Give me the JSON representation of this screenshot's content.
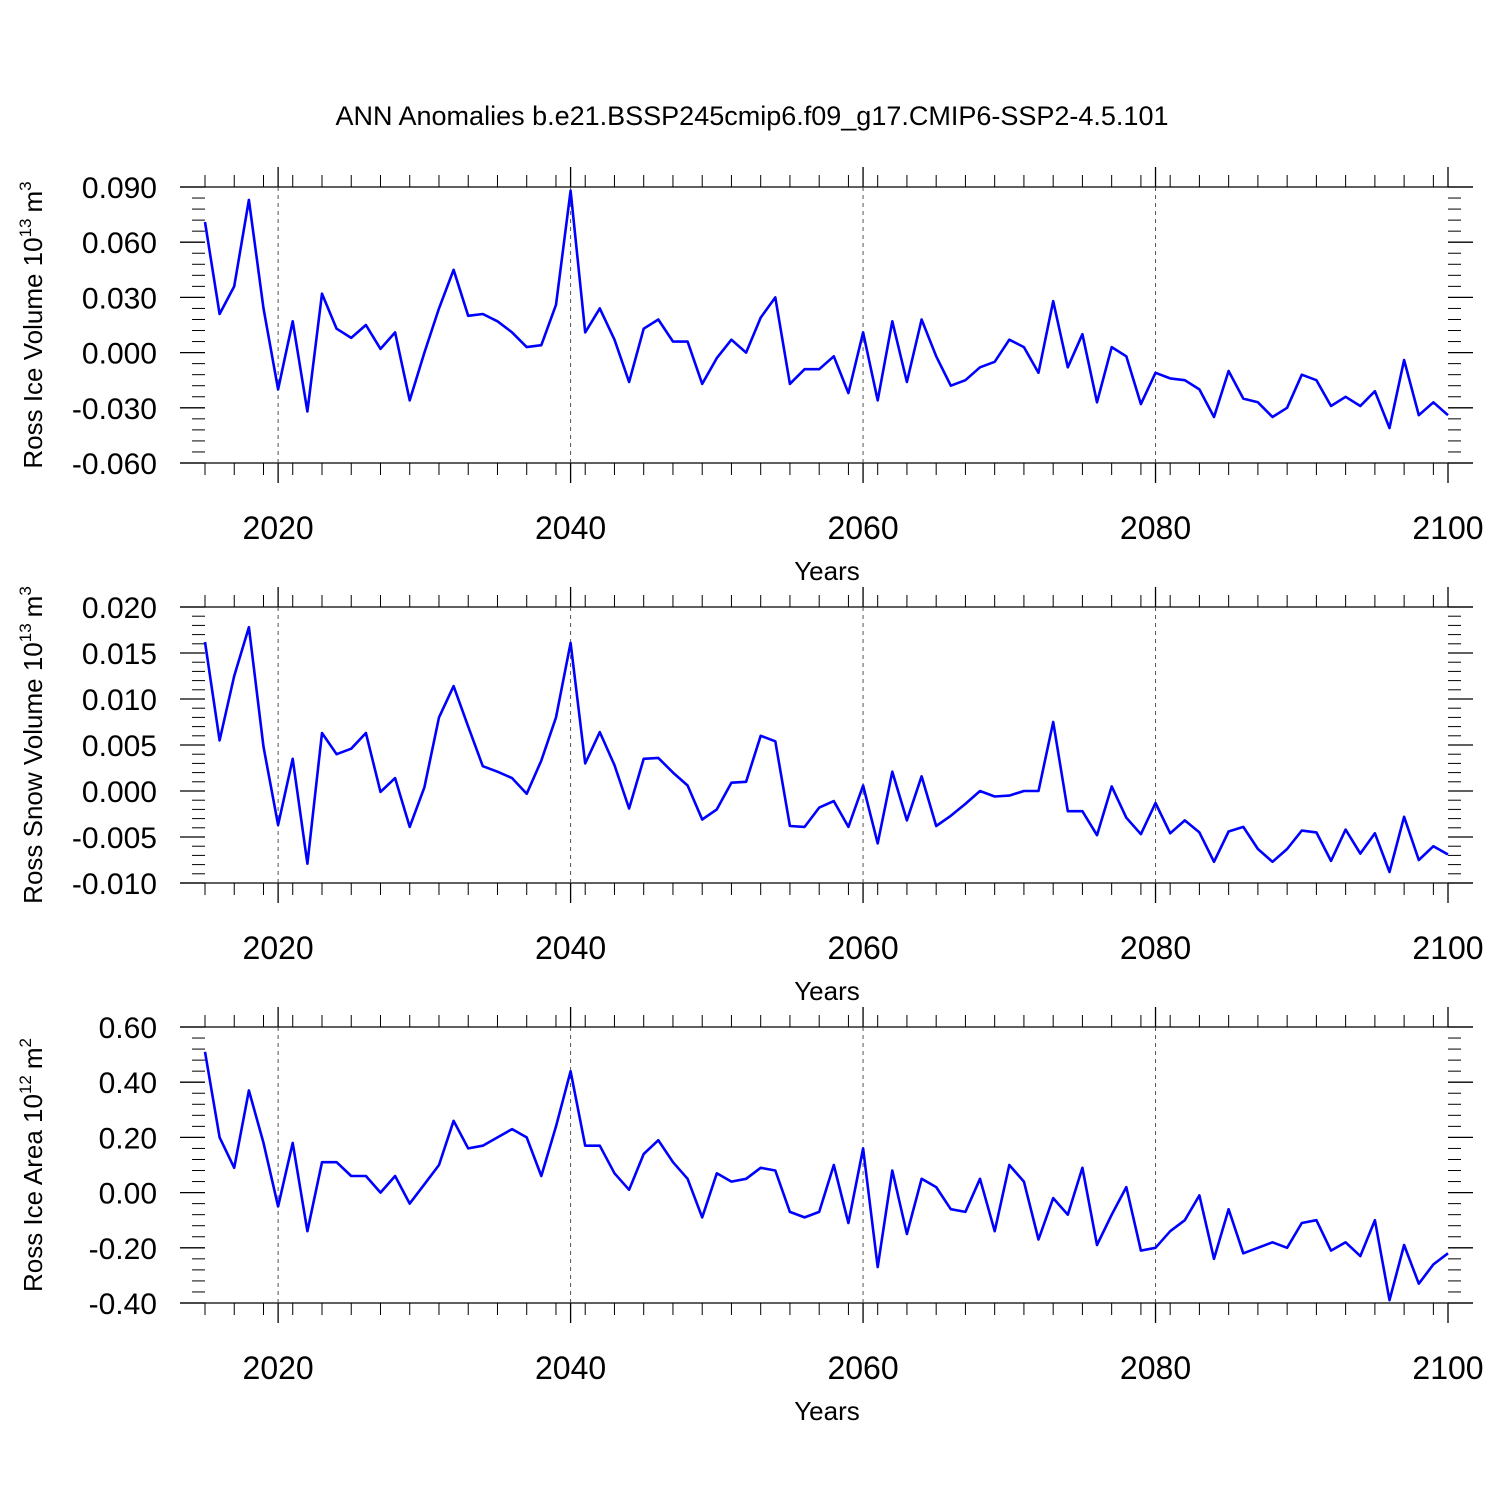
{
  "title": "ANN Anomalies b.e21.BSSP245cmip6.f09_g17.CMIP6-SSP2-4.5.101",
  "colors": {
    "line": "#0000ff",
    "axis": "#000000",
    "grid": "#555555"
  },
  "chart_data": [
    {
      "type": "line",
      "ylabel": "Ross Ice Volume 10",
      "ylabel_sup": "13",
      "ylabel_unit": "m",
      "ylabel_unit_sup": "3",
      "xlabel": "Years",
      "xlim": [
        2015,
        2100
      ],
      "ylim": [
        -0.06,
        0.09
      ],
      "x_ticks": [
        2020,
        2040,
        2060,
        2080,
        2100
      ],
      "x_tick_labels": [
        "2020",
        "2040",
        "2060",
        "2080",
        "2100"
      ],
      "y_ticks": [
        -0.06,
        -0.03,
        0.0,
        0.03,
        0.06,
        0.09
      ],
      "y_tick_labels": [
        "-0.060",
        "-0.030",
        "0.000",
        "0.030",
        "0.060",
        "0.090"
      ],
      "grid": "dashed vertical lines at major x ticks",
      "series": [
        {
          "x": [
            2015,
            2016,
            2017,
            2018,
            2019,
            2020,
            2021,
            2022,
            2023,
            2024,
            2025,
            2026,
            2027,
            2028,
            2029,
            2030,
            2031,
            2032,
            2033,
            2034,
            2035,
            2036,
            2037,
            2038,
            2039,
            2040,
            2041,
            2042,
            2043,
            2044,
            2045,
            2046,
            2047,
            2048,
            2049,
            2050,
            2051,
            2052,
            2053,
            2054,
            2055,
            2056,
            2057,
            2058,
            2059,
            2060,
            2061,
            2062,
            2063,
            2064,
            2065,
            2066,
            2067,
            2068,
            2069,
            2070,
            2071,
            2072,
            2073,
            2074,
            2075,
            2076,
            2077,
            2078,
            2079,
            2080,
            2081,
            2082,
            2083,
            2084,
            2085,
            2086,
            2087,
            2088,
            2089,
            2090,
            2091,
            2092,
            2093,
            2094,
            2095,
            2096,
            2097,
            2098,
            2099,
            2100
          ],
          "y": [
            0.071,
            0.021,
            0.036,
            0.083,
            0.024,
            -0.02,
            0.017,
            -0.032,
            0.032,
            0.013,
            0.008,
            0.015,
            0.002,
            0.011,
            -0.026,
            0.0,
            0.024,
            0.045,
            0.02,
            0.021,
            0.017,
            0.011,
            0.003,
            0.004,
            0.026,
            0.088,
            0.011,
            0.024,
            0.007,
            -0.016,
            0.013,
            0.018,
            0.006,
            0.006,
            -0.017,
            -0.003,
            0.007,
            0.0,
            0.019,
            0.03,
            -0.017,
            -0.009,
            -0.009,
            -0.002,
            -0.022,
            0.011,
            -0.026,
            0.017,
            -0.016,
            0.018,
            -0.002,
            -0.018,
            -0.015,
            -0.008,
            -0.005,
            0.007,
            0.003,
            -0.011,
            0.028,
            -0.008,
            0.01,
            -0.027,
            0.003,
            -0.002,
            -0.028,
            -0.011,
            -0.014,
            -0.015,
            -0.02,
            -0.035,
            -0.01,
            -0.025,
            -0.027,
            -0.035,
            -0.03,
            -0.012,
            -0.015,
            -0.029,
            -0.024,
            -0.029,
            -0.021,
            -0.041,
            -0.004,
            -0.034,
            -0.027,
            -0.034
          ]
        }
      ]
    },
    {
      "type": "line",
      "ylabel": "Ross Snow Volume 10",
      "ylabel_sup": "13",
      "ylabel_unit": "m",
      "ylabel_unit_sup": "3",
      "xlabel": "Years",
      "xlim": [
        2015,
        2100
      ],
      "ylim": [
        -0.01,
        0.02
      ],
      "x_ticks": [
        2020,
        2040,
        2060,
        2080,
        2100
      ],
      "x_tick_labels": [
        "2020",
        "2040",
        "2060",
        "2080",
        "2100"
      ],
      "y_ticks": [
        -0.01,
        -0.005,
        0.0,
        0.005,
        0.01,
        0.015,
        0.02
      ],
      "y_tick_labels": [
        "-0.010",
        "-0.005",
        "0.000",
        "0.005",
        "0.010",
        "0.015",
        "0.020"
      ],
      "grid": "dashed vertical lines at major x ticks",
      "series": [
        {
          "x": [
            2015,
            2016,
            2017,
            2018,
            2019,
            2020,
            2021,
            2022,
            2023,
            2024,
            2025,
            2026,
            2027,
            2028,
            2029,
            2030,
            2031,
            2032,
            2033,
            2034,
            2035,
            2036,
            2037,
            2038,
            2039,
            2040,
            2041,
            2042,
            2043,
            2044,
            2045,
            2046,
            2047,
            2048,
            2049,
            2050,
            2051,
            2052,
            2053,
            2054,
            2055,
            2056,
            2057,
            2058,
            2059,
            2060,
            2061,
            2062,
            2063,
            2064,
            2065,
            2066,
            2067,
            2068,
            2069,
            2070,
            2071,
            2072,
            2073,
            2074,
            2075,
            2076,
            2077,
            2078,
            2079,
            2080,
            2081,
            2082,
            2083,
            2084,
            2085,
            2086,
            2087,
            2088,
            2089,
            2090,
            2091,
            2092,
            2093,
            2094,
            2095,
            2096,
            2097,
            2098,
            2099,
            2100
          ],
          "y": [
            0.0162,
            0.0055,
            0.0125,
            0.0178,
            0.0048,
            -0.0037,
            0.0035,
            -0.0079,
            0.0063,
            0.004,
            0.0046,
            0.0063,
            -0.0001,
            0.0014,
            -0.0039,
            0.0004,
            0.008,
            0.0114,
            0.007,
            0.0027,
            0.0021,
            0.0014,
            -0.0003,
            0.0033,
            0.008,
            0.0161,
            0.003,
            0.0064,
            0.0028,
            -0.0019,
            0.0035,
            0.0036,
            0.002,
            0.0006,
            -0.0031,
            -0.002,
            0.0009,
            0.001,
            0.006,
            0.0054,
            -0.0038,
            -0.0039,
            -0.0018,
            -0.0011,
            -0.0039,
            0.0006,
            -0.0057,
            0.0021,
            -0.0032,
            0.0016,
            -0.0038,
            -0.0027,
            -0.0014,
            0.0,
            -0.0006,
            -0.0005,
            0.0,
            0.0,
            0.0075,
            -0.0022,
            -0.0022,
            -0.0048,
            0.0005,
            -0.0029,
            -0.0047,
            -0.0013,
            -0.0046,
            -0.0032,
            -0.0045,
            -0.0077,
            -0.0044,
            -0.0039,
            -0.0063,
            -0.0077,
            -0.0063,
            -0.0043,
            -0.0045,
            -0.0076,
            -0.0042,
            -0.0068,
            -0.0046,
            -0.0088,
            -0.0028,
            -0.0075,
            -0.006,
            -0.0069
          ]
        }
      ]
    },
    {
      "type": "line",
      "ylabel": "Ross Ice Area 10",
      "ylabel_sup": "12",
      "ylabel_unit": "m",
      "ylabel_unit_sup": "2",
      "xlabel": "Years",
      "xlim": [
        2015,
        2100
      ],
      "ylim": [
        -0.4,
        0.6
      ],
      "x_ticks": [
        2020,
        2040,
        2060,
        2080,
        2100
      ],
      "x_tick_labels": [
        "2020",
        "2040",
        "2060",
        "2080",
        "2100"
      ],
      "y_ticks": [
        -0.4,
        -0.2,
        0.0,
        0.2,
        0.4,
        0.6
      ],
      "y_tick_labels": [
        "-0.40",
        "-0.20",
        "0.00",
        "0.20",
        "0.40",
        "0.60"
      ],
      "grid": "dashed vertical lines at major x ticks",
      "series": [
        {
          "x": [
            2015,
            2016,
            2017,
            2018,
            2019,
            2020,
            2021,
            2022,
            2023,
            2024,
            2025,
            2026,
            2027,
            2028,
            2029,
            2030,
            2031,
            2032,
            2033,
            2034,
            2035,
            2036,
            2037,
            2038,
            2039,
            2040,
            2041,
            2042,
            2043,
            2044,
            2045,
            2046,
            2047,
            2048,
            2049,
            2050,
            2051,
            2052,
            2053,
            2054,
            2055,
            2056,
            2057,
            2058,
            2059,
            2060,
            2061,
            2062,
            2063,
            2064,
            2065,
            2066,
            2067,
            2068,
            2069,
            2070,
            2071,
            2072,
            2073,
            2074,
            2075,
            2076,
            2077,
            2078,
            2079,
            2080,
            2081,
            2082,
            2083,
            2084,
            2085,
            2086,
            2087,
            2088,
            2089,
            2090,
            2091,
            2092,
            2093,
            2094,
            2095,
            2096,
            2097,
            2098,
            2099,
            2100
          ],
          "y": [
            0.51,
            0.2,
            0.09,
            0.37,
            0.18,
            -0.05,
            0.18,
            -0.14,
            0.11,
            0.11,
            0.06,
            0.06,
            0.0,
            0.06,
            -0.04,
            0.03,
            0.1,
            0.26,
            0.16,
            0.17,
            0.2,
            0.23,
            0.2,
            0.06,
            0.24,
            0.44,
            0.17,
            0.17,
            0.07,
            0.01,
            0.14,
            0.19,
            0.11,
            0.05,
            -0.09,
            0.07,
            0.04,
            0.05,
            0.09,
            0.08,
            -0.07,
            -0.09,
            -0.07,
            0.1,
            -0.11,
            0.16,
            -0.27,
            0.08,
            -0.15,
            0.05,
            0.02,
            -0.06,
            -0.07,
            0.05,
            -0.14,
            0.1,
            0.04,
            -0.17,
            -0.02,
            -0.08,
            0.09,
            -0.19,
            -0.08,
            0.02,
            -0.21,
            -0.2,
            -0.14,
            -0.1,
            -0.01,
            -0.24,
            -0.06,
            -0.22,
            -0.2,
            -0.18,
            -0.2,
            -0.11,
            -0.1,
            -0.21,
            -0.18,
            -0.23,
            -0.1,
            -0.39,
            -0.19,
            -0.33,
            -0.26,
            -0.22
          ]
        }
      ]
    }
  ]
}
